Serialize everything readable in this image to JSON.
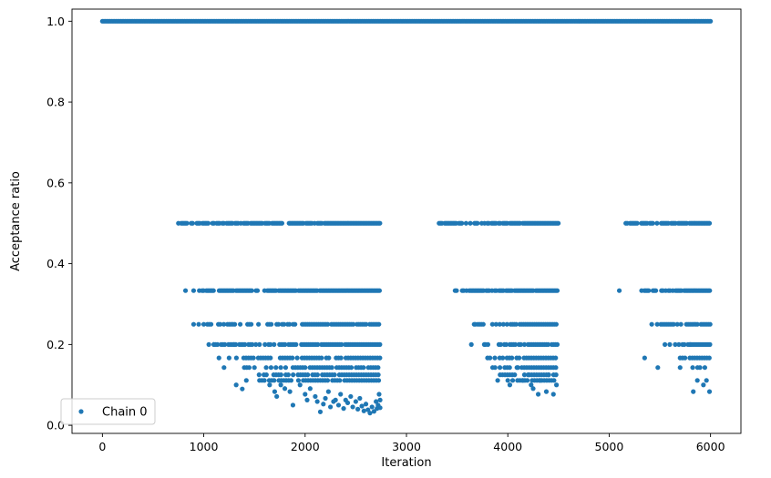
{
  "chart_data": {
    "type": "scatter",
    "xlabel": "Iteration",
    "ylabel": "Acceptance ratio",
    "xlim": [
      -300,
      6300
    ],
    "ylim": [
      -0.02,
      1.03
    ],
    "xticks": [
      0,
      1000,
      2000,
      3000,
      4000,
      5000,
      6000
    ],
    "yticks": [
      0.0,
      0.2,
      0.4,
      0.6,
      0.8,
      1.0
    ],
    "xtick_labels": [
      "0",
      "1000",
      "2000",
      "3000",
      "4000",
      "5000",
      "6000"
    ],
    "ytick_labels": [
      "0.0",
      "0.2",
      "0.4",
      "0.6",
      "0.8",
      "1.0"
    ],
    "grid": false,
    "legend": {
      "placement": "bottom-left",
      "entries": [
        "Chain 0"
      ]
    },
    "colors": {
      "series": "#1f77b4"
    },
    "series": [
      {
        "name": "Chain 0",
        "marker_radius_hint": "small",
        "line_segments": [
          {
            "y": 1.0,
            "x_start": 0,
            "x_end": 6000
          }
        ],
        "dense_levels": [
          {
            "y": 0.5,
            "ranges": [
              [
                750,
                2740
              ],
              [
                3280,
                4500
              ],
              [
                5150,
                6000
              ]
            ]
          },
          {
            "y": 0.3333,
            "ranges": [
              [
                900,
                2740
              ],
              [
                3480,
                4490
              ],
              [
                5320,
                6000
              ]
            ]
          },
          {
            "y": 0.25,
            "ranges": [
              [
                1000,
                2740
              ],
              [
                3650,
                4490
              ],
              [
                5420,
                6000
              ]
            ]
          },
          {
            "y": 0.2,
            "ranges": [
              [
                1100,
                2740
              ],
              [
                3750,
                4490
              ],
              [
                5580,
                6000
              ]
            ]
          },
          {
            "y": 0.1667,
            "ranges": [
              [
                1250,
                2740
              ],
              [
                3800,
                4490
              ],
              [
                5700,
                6000
              ]
            ]
          },
          {
            "y": 0.1429,
            "ranges": [
              [
                1400,
                2740
              ],
              [
                3850,
                4490
              ],
              [
                5800,
                5950
              ]
            ]
          },
          {
            "y": 0.125,
            "ranges": [
              [
                1450,
                2740
              ],
              [
                3900,
                4480
              ]
            ]
          },
          {
            "y": 0.1111,
            "ranges": [
              [
                1550,
                2740
              ],
              [
                4000,
                4470
              ]
            ]
          }
        ],
        "points": [
          [
            820,
            0.3333
          ],
          [
            900,
            0.25
          ],
          [
            950,
            0.25
          ],
          [
            1050,
            0.2
          ],
          [
            1100,
            0.2
          ],
          [
            1150,
            0.1667
          ],
          [
            1200,
            0.1429
          ],
          [
            1250,
            0.1667
          ],
          [
            1300,
            0.2
          ],
          [
            1320,
            0.1
          ],
          [
            1380,
            0.09
          ],
          [
            1420,
            0.1111
          ],
          [
            1500,
            0.1429
          ],
          [
            1550,
            0.1111
          ],
          [
            1650,
            0.1
          ],
          [
            1700,
            0.0833
          ],
          [
            1720,
            0.0714
          ],
          [
            1760,
            0.1
          ],
          [
            1800,
            0.0909
          ],
          [
            1850,
            0.0833
          ],
          [
            1880,
            0.05
          ],
          [
            1950,
            0.1
          ],
          [
            2000,
            0.0769
          ],
          [
            2020,
            0.0625
          ],
          [
            2050,
            0.0909
          ],
          [
            2100,
            0.0714
          ],
          [
            2120,
            0.0588
          ],
          [
            2150,
            0.0333
          ],
          [
            2180,
            0.0526
          ],
          [
            2200,
            0.0667
          ],
          [
            2230,
            0.0833
          ],
          [
            2250,
            0.0455
          ],
          [
            2280,
            0.0588
          ],
          [
            2300,
            0.0625
          ],
          [
            2330,
            0.05
          ],
          [
            2350,
            0.0769
          ],
          [
            2380,
            0.0417
          ],
          [
            2400,
            0.0625
          ],
          [
            2420,
            0.0556
          ],
          [
            2450,
            0.0714
          ],
          [
            2470,
            0.0455
          ],
          [
            2500,
            0.0588
          ],
          [
            2520,
            0.04
          ],
          [
            2540,
            0.0667
          ],
          [
            2560,
            0.0476
          ],
          [
            2580,
            0.0357
          ],
          [
            2600,
            0.0526
          ],
          [
            2620,
            0.0385
          ],
          [
            2640,
            0.0303
          ],
          [
            2660,
            0.0455
          ],
          [
            2680,
            0.0345
          ],
          [
            2700,
            0.0588
          ],
          [
            2710,
            0.0417
          ],
          [
            2720,
            0.05
          ],
          [
            2730,
            0.0769
          ],
          [
            2740,
            0.0625
          ],
          [
            2740,
            0.0435
          ],
          [
            3640,
            0.2
          ],
          [
            3680,
            0.25
          ],
          [
            3780,
            0.2
          ],
          [
            3850,
            0.1429
          ],
          [
            3900,
            0.1111
          ],
          [
            3950,
            0.1667
          ],
          [
            4020,
            0.1
          ],
          [
            4100,
            0.1429
          ],
          [
            4150,
            0.1111
          ],
          [
            4200,
            0.125
          ],
          [
            4230,
            0.1
          ],
          [
            4250,
            0.0909
          ],
          [
            4300,
            0.0769
          ],
          [
            4320,
            0.1111
          ],
          [
            4380,
            0.0833
          ],
          [
            4400,
            0.125
          ],
          [
            4450,
            0.0769
          ],
          [
            4480,
            0.1
          ],
          [
            5100,
            0.3333
          ],
          [
            5350,
            0.1667
          ],
          [
            5480,
            0.1429
          ],
          [
            5550,
            0.2
          ],
          [
            5700,
            0.1429
          ],
          [
            5800,
            0.2
          ],
          [
            5830,
            0.0833
          ],
          [
            5870,
            0.1111
          ],
          [
            5930,
            0.1
          ],
          [
            5960,
            0.1111
          ],
          [
            5990,
            0.0833
          ]
        ]
      }
    ]
  }
}
